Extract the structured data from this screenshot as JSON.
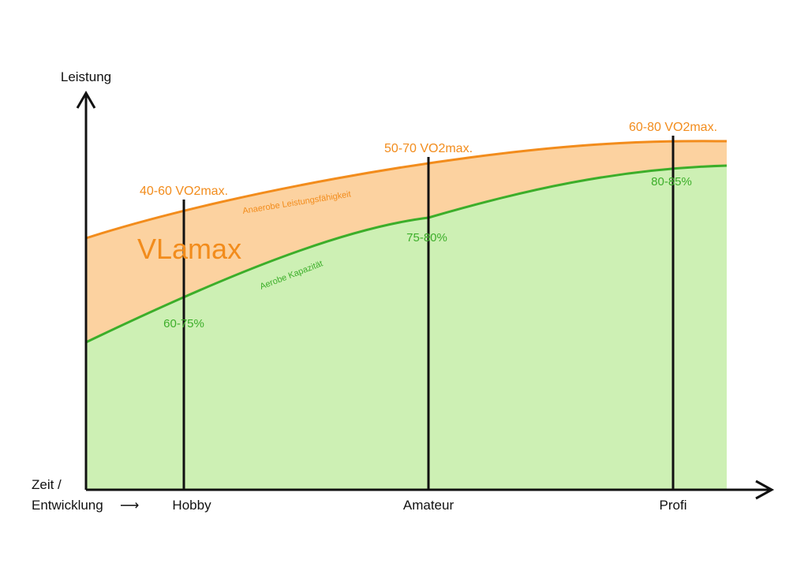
{
  "chart_data": {
    "type": "area",
    "xlabel_line1": "Zeit /",
    "xlabel_line2": "Entwicklung",
    "xlabel_arrow": "⟶",
    "ylabel": "Leistung",
    "categories": [
      "Hobby",
      "Amateur",
      "Profi"
    ],
    "series": [
      {
        "name": "Anaerobe Leistungsfähigkeit",
        "color": "#f28c1c",
        "fill": "#fcd2a0"
      },
      {
        "name": "Aerobe Kapazität",
        "color": "#3cae2a",
        "fill": "#cdf0b4"
      }
    ],
    "vo2max_labels": [
      "40-60 VO2max.",
      "50-70 VO2max.",
      "60-80 VO2max."
    ],
    "percent_labels": [
      "60-75%",
      "75-80%",
      "80-85%"
    ],
    "region_label": "VLamax",
    "grid": false,
    "legend": "none"
  }
}
